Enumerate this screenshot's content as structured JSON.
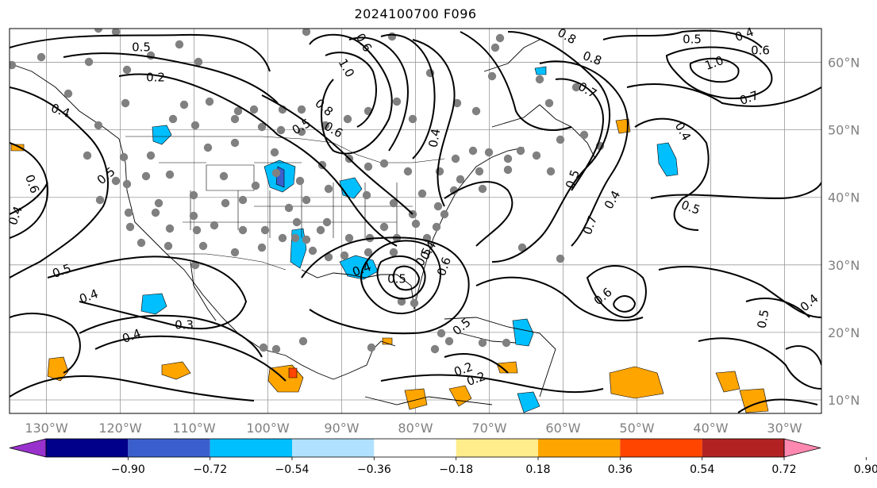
{
  "title": "2024100700 F096",
  "map": {
    "lon_range": [
      -135,
      -25
    ],
    "lat_range": [
      8,
      65
    ],
    "lon_ticks": [
      {
        "value": -130,
        "label": "130°W"
      },
      {
        "value": -120,
        "label": "120°W"
      },
      {
        "value": -110,
        "label": "110°W"
      },
      {
        "value": -100,
        "label": "100°W"
      },
      {
        "value": -90,
        "label": "90°W"
      },
      {
        "value": -80,
        "label": "80°W"
      },
      {
        "value": -70,
        "label": "70°W"
      },
      {
        "value": -60,
        "label": "60°W"
      },
      {
        "value": -50,
        "label": "50°W"
      },
      {
        "value": -40,
        "label": "40°W"
      },
      {
        "value": -30,
        "label": "30°W"
      }
    ],
    "lat_ticks": [
      {
        "value": 60,
        "label": "60°N"
      },
      {
        "value": 50,
        "label": "50°N"
      },
      {
        "value": 40,
        "label": "40°N"
      },
      {
        "value": 30,
        "label": "30°N"
      },
      {
        "value": 20,
        "label": "20°N"
      },
      {
        "value": 10,
        "label": "10°N"
      }
    ],
    "grid": true,
    "contour_labels": [
      "0.5",
      "0.2",
      "0.4",
      "0.6",
      "0.5",
      "0.4",
      "0.5",
      "0.4",
      "0.3",
      "0.4",
      "1.0",
      "0.8",
      "0.5",
      "0.6",
      "0.4",
      "0.6",
      "0.5",
      "0.7",
      "0.7",
      "0.8",
      "1.0",
      "0.5",
      "0.4",
      "0.6",
      "0.7",
      "0.4",
      "0.5",
      "0.4",
      "0.6",
      "0.5",
      "0.4",
      "0.5",
      "0.4",
      "0.2",
      "0.2",
      "0.5",
      "0.6",
      "0.4",
      "0.5",
      "0.8"
    ]
  },
  "colorbar": {
    "ticks": [
      "−0.90",
      "−0.72",
      "−0.54",
      "−0.36",
      "−0.18",
      "0.18",
      "0.36",
      "0.54",
      "0.72",
      "0.90"
    ],
    "colors": [
      "#9932cc",
      "#00008b",
      "#3a5fcd",
      "#00bfff",
      "#b0e2ff",
      "#ffffff",
      "#ffec8b",
      "#ffa500",
      "#ff4500",
      "#b22222",
      "#ff88b0"
    ]
  },
  "colors": {
    "negative_fill": "#00bfff",
    "positive_fill": "#ffa500",
    "station_dot": "#808080",
    "tick_label": "#808080"
  }
}
